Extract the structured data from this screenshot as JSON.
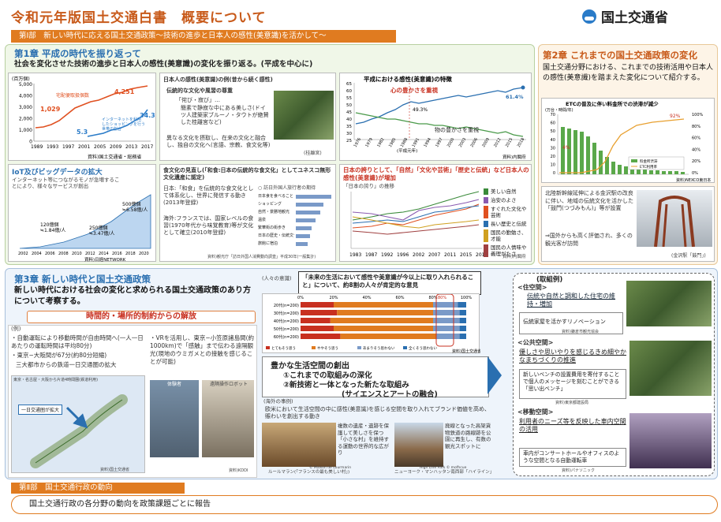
{
  "header": {
    "title": "令和元年版国土交通白書　概要について",
    "org": "国土交通省"
  },
  "part1_band": "第Ⅰ部　新しい時代に応える国土交通政策～技術の進歩と日本人の感性(美意識)を活かして～",
  "ch1": {
    "title": "第1章 平成の時代を振り返って",
    "lead": "社会を変化させた技術の進歩と日本人の感性(美意識)の変化を振り返る。(平成を中心に)"
  },
  "chart1": {
    "unit": "(百万個)",
    "yticks": [
      "5,000",
      "4,000",
      "3,000",
      "2,000",
      "1,000",
      "0"
    ],
    "xticks": [
      "1989",
      "1993",
      "1997",
      "2001",
      "2005",
      "2009",
      "2013",
      "2017"
    ],
    "label_a": "宅配便取扱個数",
    "label_b": "インターネットを利用したショッピングを行う世帯の割合",
    "v1": "1,029",
    "v2": "4,251",
    "v3": "5.3",
    "v4": "34.3",
    "src": "資料)国土交通省・総務省"
  },
  "chart_data": [
    {
      "type": "line",
      "series": [
        {
          "name": "宅配便取扱個数",
          "values": [
            1029,
            4251
          ]
        },
        {
          "name": "インターネットを利用したショッピングを行う世帯の割合",
          "values": [
            5.3,
            34.3
          ]
        }
      ],
      "ylim": [
        0,
        5000
      ]
    },
    {
      "type": "line",
      "series": [
        {
          "name": "心の豊かさを重視",
          "values": [
            49.3,
            61.4
          ]
        },
        {
          "name": "物の豊かさを重視",
          "values": []
        }
      ],
      "ylim": [
        25,
        65
      ]
    }
  ],
  "panel2": {
    "title": "日本人の感性(美意識)の例(昔から続く感性)",
    "b1": "伝統的な文化や風習の尊重",
    "b1a": "「侘び・寂び」…",
    "b1b": "簡素で静寂な中にある美しさ(ドイツ人建築家ブルーノ・タウトが絶賛した桂離宮など)",
    "b2": "異なる文化を摂取し、在来の文化と融合し、独自の文化へ(言語、宗教、食文化等)",
    "cap": "(桂離宮)"
  },
  "chart2": {
    "title": "平成における感性(美意識)の特徴",
    "a": "心の豊かさを重視",
    "b": "物の豊かさを重視",
    "v1": "49.3%",
    "v2": "61.4%",
    "xl": "(平成元年)",
    "yticks": [
      "65",
      "60",
      "55",
      "50",
      "45",
      "40",
      "35",
      "30",
      "25"
    ],
    "xticks": [
      "1976",
      "1979",
      "1982",
      "1985",
      "1988",
      "1991",
      "1994",
      "1997",
      "2000",
      "2003",
      "2006",
      "2009",
      "2012",
      "2015",
      "2018"
    ],
    "src": "資料)内閣府"
  },
  "iot": {
    "title": "IoT及びビッグデータの拡大",
    "text": "インターネット等につながるモノが急増することにより、様々なサービスが創出",
    "v1": "120億個 ≒1.84億/人",
    "v2": "250億個 ≒3.47億/人",
    "v3": "500億個 ≒6.58億/人",
    "xticks": [
      "2002",
      "2004",
      "2006",
      "2008",
      "2010",
      "2012",
      "2014",
      "2016",
      "2018",
      "2020"
    ],
    "src": "資料)日経NETWORK"
  },
  "food": {
    "title": "食文化の見直し(「和食:日本の伝統的な食文化」としてユネスコ無形文化遺産に認定)",
    "p1": "日本:「和食」を伝統的な食文化として体系化し、世界に発信する動き(2013年登録)",
    "p2": "海外:フランスでは、国家レベルの食習(1970年代から味覚教育)等が文化として確立(2010年登録)",
    "ctitle": "○ 訪日外国人旅行者の期待",
    "bars": [
      "日本食を食べること",
      "ショッピング",
      "自然・景勝地観光",
      "温泉",
      "繁華街の街歩き",
      "日本の歴史・伝統文化体験",
      "旅館に宿泊"
    ],
    "src": "資料)観光庁「訪日外国人消費動向調査」平成30年(一般集計)"
  },
  "pride": {
    "title": "日本の誇りとして、「自然」「文化や芸術」「歴史と伝統」など日本人の感性(美意識)が増加",
    "sub": "「日本の誇り」の推移",
    "legend": [
      "美しい自然",
      "治安のよさ",
      "すぐれた文化や芸術",
      "長い歴史と伝統",
      "国民の勤勉さ、才能",
      "国民の人情味や義理がたさ"
    ],
    "xticks": [
      "1983",
      "1987",
      "1992",
      "1996",
      "2002",
      "2007",
      "2011",
      "2015",
      "2019"
    ],
    "src": "資料)内閣府"
  },
  "ch2": {
    "title": "第2章 これまでの国土交通政策の変化",
    "text": "国土交通分野における、これまでの技術活用や日本人の感性(美意識)を踏まえた変化について紹介する。",
    "ctitle": "ETCの普及に伴い料金所での渋滞が減少",
    "cunit": "(万台・時間/年)",
    "l1": "料金所渋滞",
    "l2": "ETC利用率",
    "v1": "4%",
    "v2": "92%",
    "src": "資料)NEXCO東日本",
    "rt": [
      "100%",
      "80%",
      "60%",
      "40%",
      "20%",
      "0%"
    ],
    "lt": [
      "70",
      "60",
      "50",
      "40",
      "30",
      "20",
      "10",
      "0"
    ],
    "gtext": "北陸新幹線延伸による金沢駅の改良に伴い、地域の伝統文化を活かした「鼓門(つづみもん)」等が設置",
    "gtext2": "⇒国外からも高く評価され、多くの観光客が訪問",
    "gcap": "(金沢駅「鼓門」)"
  },
  "ch3": {
    "title": "第3章 新しい時代と国土交通政策",
    "lead": "新しい時代における社会の変化と求められる国土交通政策のあり方について考察する。",
    "red": "時間的・場所的制約からの解放",
    "ex": "(例)",
    "e1": "・自動運転により移動時間が自由時間へ(一人一日あたりの運転時間は平均80分)",
    "e2": "・東京−大阪間が67分(約80分短縮)",
    "e3": "三大都市からの鉄道一日交通圏の拡大",
    "e4": "・VRを活用し、東京−小笠原諸島間(約1000km)で「感触」まで伝わる遠隔観光(現地のウミガメとの接触を感じることが可能)",
    "cap1": "体験者",
    "cap2": "遠隔操作ロボット",
    "src1": "資料)国土交通省",
    "src2": "資料)KDDI",
    "map1": "一日交通圏が拡大",
    "map2": "東京・名古屋・大阪から片道4時間圏(鉄道利用)"
  },
  "survey": {
    "label": "(人々の意識)",
    "q": "「未来の生活において感性や美意識が今以上に取り入れられること」について、約8割の人々が肯定的な意見",
    "rows": [
      "20代(n=200)",
      "30代(n=200)",
      "40代(n=200)",
      "50代(n=200)",
      "60代(n=200)"
    ],
    "xt": [
      "0%",
      "20%",
      "40%",
      "60%",
      "80%",
      "100%"
    ],
    "hl": "80%",
    "legend": [
      "とてもそう思う",
      "ややそう思う",
      "あまりそう思わない",
      "全くそう思わない"
    ],
    "src": "資料)国土交通省"
  },
  "vision": {
    "t": "豊かな生活空間の創出",
    "a": "①これまでの取組みの深化",
    "b": "②新技術と一体となった新たな取組み",
    "c": "(サイエンスとアートの融合)"
  },
  "overseas": {
    "t": "(海外の事例)",
    "txt": "欧米において生活空間の中に感性(美意識)を感じる空間を取り入れてブランド価値を高め、賑わいを創出する動き",
    "c1": "複数の遺産・遺跡を保護して美しさを保つ「小さな村」を維持する運動の世界的な広がり",
    "c2": "廃線となった高架貨物鉄道の路線跡を公園に再生し、有数の観光スポットに",
    "cap1": "ルールマラン(「フランスの最も美しい村」)",
    "cap2": "ニューヨーク・マンハッタン南西部「ハイライン」",
    "cr1": "© Maison de Lourmarin",
    "cr2": "High Line Park © mofhcue"
  },
  "examples": {
    "t": "(取組例)",
    "s1": "<住空間>",
    "s1a": "伝統や自然と調和した住宅の維持・増加",
    "s1b": "伝統家屋を活かすリノベーション",
    "s1src": "資料)鎌倉市観光協会",
    "s2": "<公共空間>",
    "s2a": "優しさや思いやりを感じるきめ細やかなまちづくりの推進",
    "s2b": "新しいベンチの設置費用を寄付することで個人のメッセージを刻むことができる「思い出ベンチ」",
    "s2src": "資料)東京都建設局",
    "s3": "<移動空間>",
    "s3a": "利用者のニーズ等を反映した車内空間の活用",
    "s3b": "車内がコンサートホールやオフィスのような空間となる自動運転車",
    "s3src": "資料)パナソニック"
  },
  "part2_band": "第Ⅱ部　国土交通行政の動向",
  "part2_text": "国土交通行政の各分野の動向を政策課題ごとに報告"
}
